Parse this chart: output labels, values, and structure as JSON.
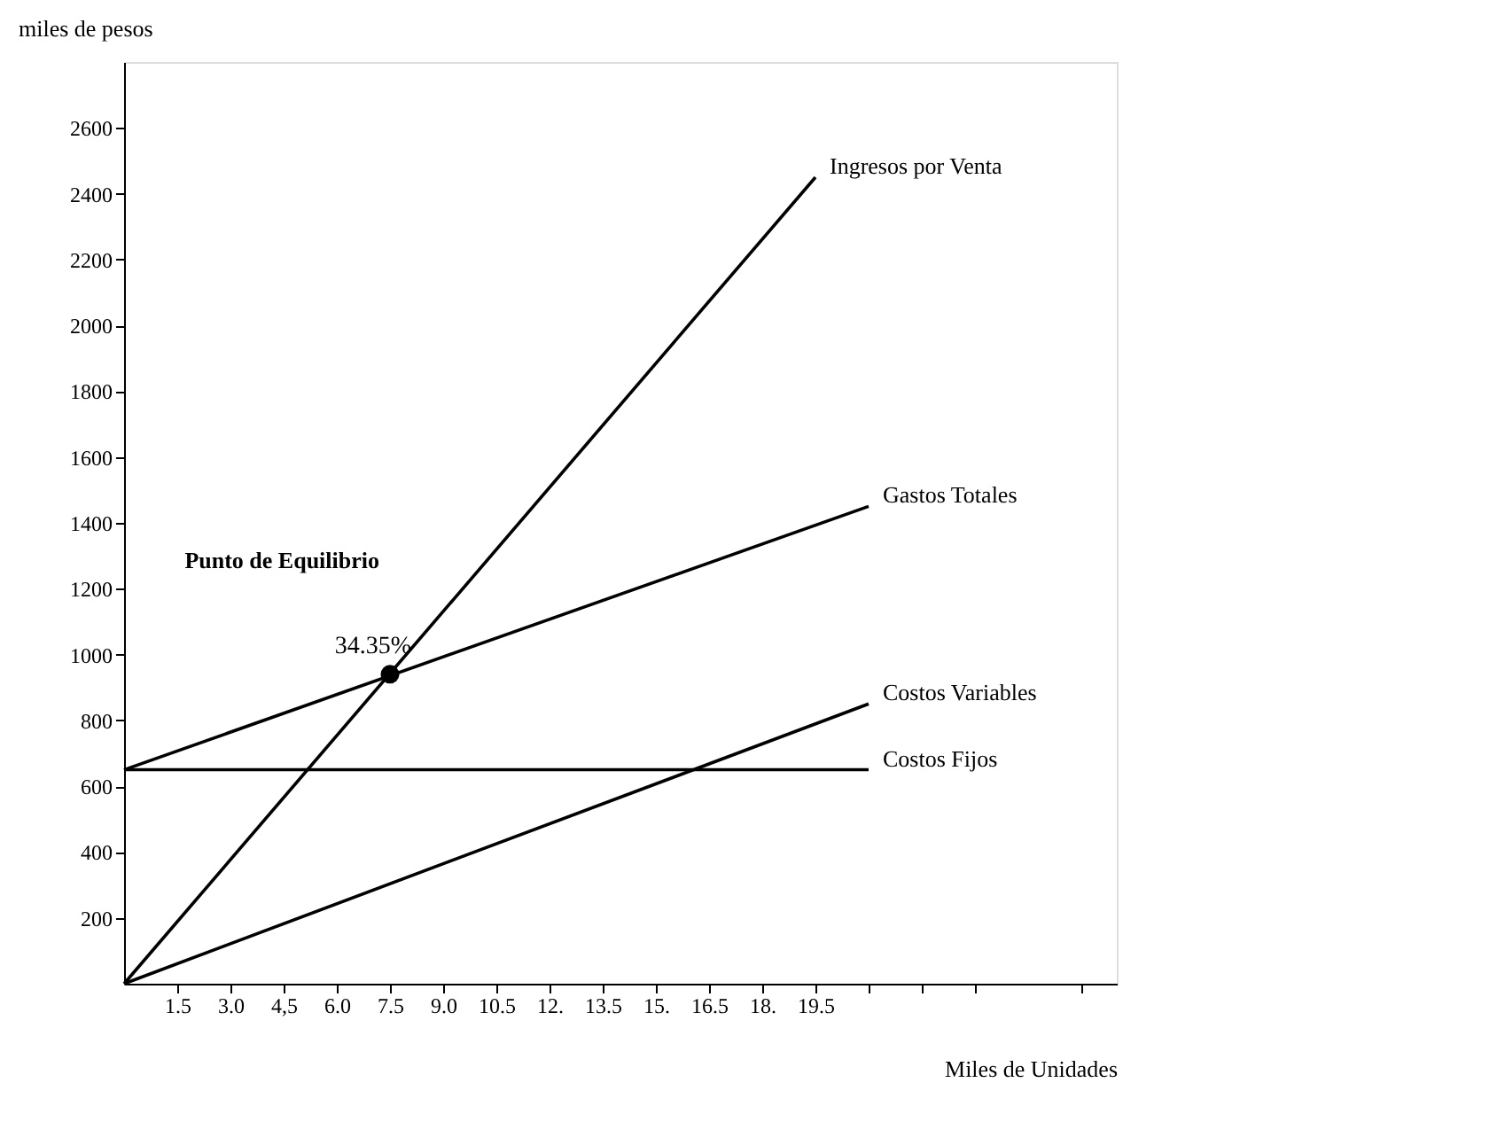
{
  "chart_data": {
    "type": "line",
    "xlabel": "Miles de Unidades",
    "ylabel": "miles de pesos",
    "xlim": [
      0,
      28
    ],
    "ylim": [
      0,
      2800
    ],
    "xticks": [
      1.5,
      {
        "value": 3,
        "label": "3.0"
      },
      {
        "value": 4.5,
        "label": "4,5"
      },
      {
        "value": 6,
        "label": "6.0"
      },
      7.5,
      {
        "value": 9,
        "label": "9.0"
      },
      10.5,
      {
        "value": 12,
        "label": "12."
      },
      13.5,
      {
        "value": 15,
        "label": "15."
      },
      16.5,
      {
        "value": 18,
        "label": "18."
      },
      19.5,
      {
        "value": 21,
        "label": null
      },
      {
        "value": 22.5,
        "label": null
      },
      {
        "value": 24,
        "label": null
      },
      {
        "value": 27,
        "label": null
      }
    ],
    "yticks": [
      200,
      400,
      600,
      800,
      1000,
      1200,
      1400,
      1600,
      1800,
      2000,
      2200,
      2400,
      2600
    ],
    "grid": false,
    "legend": false,
    "line_style": "solid",
    "series": [
      {
        "name": "Ingresos por Venta",
        "color": "#000000",
        "x": [
          0,
          19.5
        ],
        "values": [
          0,
          2450
        ]
      },
      {
        "name": "Gastos Totales",
        "color": "#000000",
        "x": [
          0,
          21
        ],
        "values": [
          650,
          1450
        ]
      },
      {
        "name": "Costos Variables",
        "color": "#000000",
        "x": [
          0,
          21
        ],
        "values": [
          0,
          850
        ]
      },
      {
        "name": "Costos Fijos",
        "color": "#000000",
        "x": [
          0,
          21
        ],
        "values": [
          650,
          650
        ]
      },
      {
        "type": "scatter",
        "marker": "circle",
        "color": "#000000",
        "x": [
          7.5
        ],
        "values": [
          940
        ]
      }
    ],
    "annotations": [
      "Punto de Equilibrio",
      {
        "text": "34.35%",
        "x": 7.5,
        "y": 940
      }
    ]
  }
}
